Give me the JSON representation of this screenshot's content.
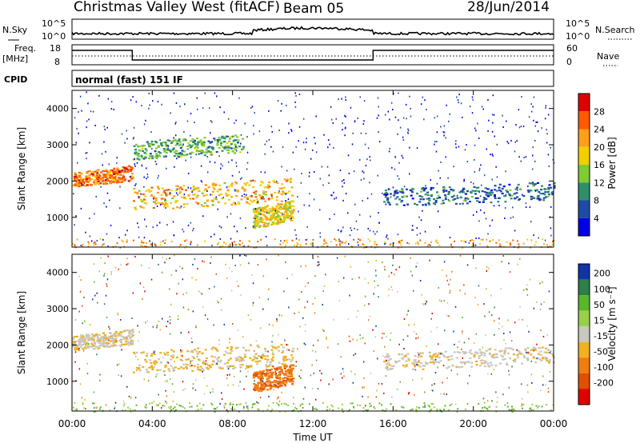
{
  "header": {
    "station": "Christmas Valley West (fitACF)",
    "beam": "Beam 05",
    "date": "28/Jun/2014"
  },
  "noise_panel": {
    "left_label": "N.Sky",
    "right_label": "N.Search",
    "ticks": [
      "10^5",
      "10^0"
    ]
  },
  "freq_panel": {
    "left_label_1": "Freq.",
    "left_label_2": "[MHz]",
    "right_label": "Nave",
    "left_ticks": [
      "18",
      "8"
    ],
    "right_ticks": [
      "60",
      "0"
    ]
  },
  "cpid": {
    "label": "CPID",
    "mode": "normal (fast) 151 IF"
  },
  "power_scale": {
    "title": "Power [dB]",
    "ticks": [
      "28",
      "24",
      "20",
      "16",
      "12",
      "8",
      "4"
    ],
    "colors": [
      "#e00000",
      "#ff5a00",
      "#ff9f1a",
      "#f2d000",
      "#7ecb33",
      "#2e8f68",
      "#1f4aa8",
      "#0000e8"
    ]
  },
  "velocity_scale": {
    "title": "Velocity [m s⁻¹]",
    "ticks": [
      "200",
      "100",
      "50",
      "15",
      "-15",
      "-50",
      "-100",
      "-200"
    ],
    "colors": [
      "#1433a8",
      "#2e7f4a",
      "#5ab62a",
      "#98d04a",
      "#c8c8c0",
      "#f0b020",
      "#f07d10",
      "#e05000",
      "#e00000"
    ]
  },
  "axes": {
    "ylabel": "Slant Range [km]",
    "yticks": [
      "4000",
      "3000",
      "2000",
      "1000"
    ],
    "xlabel": "Time UT",
    "xticks": [
      "00:00",
      "04:00",
      "08:00",
      "12:00",
      "16:00",
      "20:00",
      "00:00"
    ]
  },
  "chart_data": {
    "type": "heatmap",
    "x_range_hours": [
      0,
      24
    ],
    "y_range_km": [
      180,
      4500
    ],
    "frequency_mhz": [
      {
        "from_hour": 0,
        "to_hour": 3,
        "value": 16
      },
      {
        "from_hour": 3,
        "to_hour": 15,
        "value": 8
      },
      {
        "from_hour": 15,
        "to_hour": 24,
        "value": 16
      }
    ],
    "power_features": [
      {
        "from_hour": 0.0,
        "to_hour": 3.0,
        "range_km": [
          1850,
          2450
        ],
        "power_db": 24
      },
      {
        "from_hour": 3.0,
        "to_hour": 11.0,
        "range_km": [
          1200,
          2100
        ],
        "power_db": 20
      },
      {
        "from_hour": 3.0,
        "to_hour": 8.5,
        "range_km": [
          2600,
          3300
        ],
        "power_db": 12
      },
      {
        "from_hour": 9.0,
        "to_hour": 11.0,
        "range_km": [
          700,
          1500
        ],
        "power_db": 18
      },
      {
        "from_hour": 15.5,
        "to_hour": 24.0,
        "range_km": [
          1300,
          2000
        ],
        "power_db": 8
      }
    ],
    "velocity_features": [
      {
        "from_hour": 0.0,
        "to_hour": 3.0,
        "range_km": [
          1850,
          2450
        ],
        "velocity_ms": -10
      },
      {
        "from_hour": 3.0,
        "to_hour": 11.0,
        "range_km": [
          1200,
          2100
        ],
        "velocity_ms": -20
      },
      {
        "from_hour": 9.0,
        "to_hour": 11.0,
        "range_km": [
          700,
          1500
        ],
        "velocity_ms": -90
      },
      {
        "from_hour": 15.5,
        "to_hour": 24.0,
        "range_km": [
          1300,
          2000
        ],
        "velocity_ms": -5
      }
    ]
  }
}
